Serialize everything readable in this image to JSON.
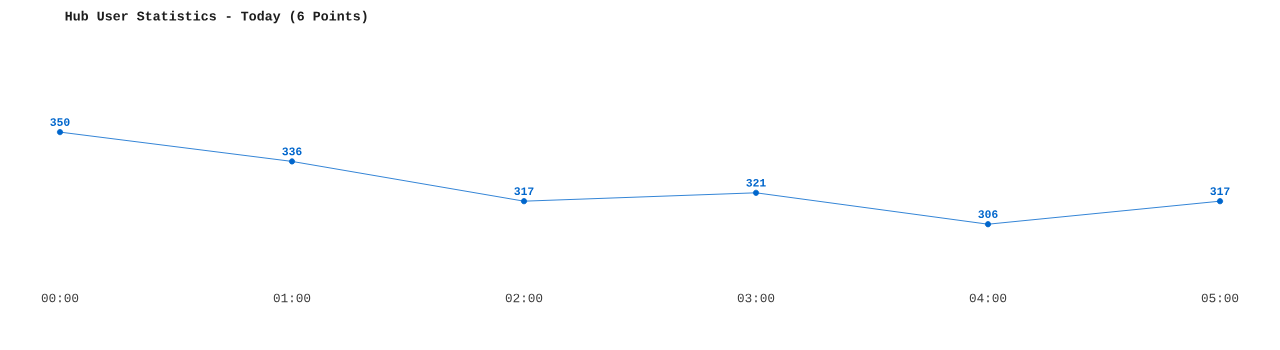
{
  "chart_data": {
    "type": "line",
    "title": "Hub User Statistics - Today (6 Points)",
    "categories": [
      "00:00",
      "01:00",
      "02:00",
      "03:00",
      "04:00",
      "05:00"
    ],
    "values": [
      350,
      336,
      317,
      321,
      306,
      317
    ],
    "color": "#0066cc",
    "marker": "circle",
    "data_labels": true
  }
}
